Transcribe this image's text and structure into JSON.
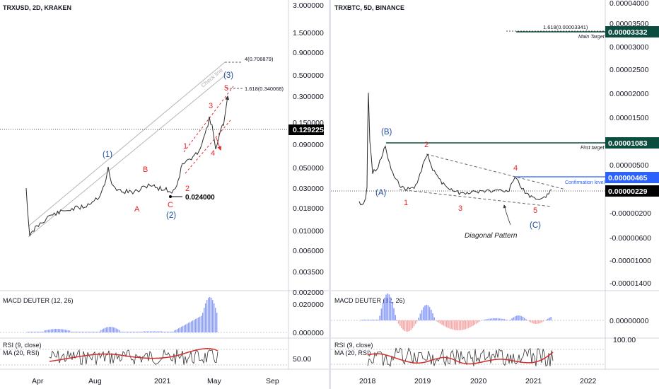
{
  "colors": {
    "grid": "#d1d4dc",
    "price": "#2b2b2b",
    "wave_red": "#e8262c",
    "wave_blue": "#1f4e9c",
    "target_green": "#0b4d3f",
    "confirm_blue": "#2962ff",
    "macd_blue": "#8c9eff",
    "macd_red": "#f7a8a8",
    "rsi_ma": "#d32f2f",
    "current_bg": "#000000"
  },
  "chart_data": [
    {
      "type": "line",
      "title": "TRXUSD, 2D, KRAKEN",
      "y_scale": "log",
      "y_ticks": [
        "3.000000",
        "1.500000",
        "0.900000",
        "0.500000",
        "0.300000",
        "0.150000",
        "0.090000",
        "0.050000",
        "0.030000",
        "0.018000",
        "0.010000",
        "0.006000",
        "0.003500",
        "0.002000"
      ],
      "x_ticks": [
        "Apr",
        "Aug",
        "2021",
        "May",
        "Sep"
      ],
      "current_price": "0.129225",
      "low_label": "0.024000",
      "fib_labels": [
        "4(0.706879)",
        "1.618(0.340068)"
      ],
      "channel_label": "Check line",
      "wave_labels_red": [
        "1",
        "2",
        "3",
        "4",
        "5",
        "A",
        "B",
        "C"
      ],
      "wave_labels_blue": [
        "(1)",
        "(2)",
        "(3)"
      ],
      "series": [
        {
          "x": [
            "2020-03-01",
            "2020-03-15",
            "2020-04-15",
            "2020-05-15",
            "2020-06-15",
            "2020-07-15",
            "2020-08-01",
            "2020-08-20",
            "2020-09-20",
            "2020-10-20",
            "2020-11-20",
            "2020-12-15",
            "2021-01-01",
            "2021-01-20",
            "2021-02-10",
            "2021-03-01",
            "2021-03-20",
            "2021-04-05",
            "2021-04-15",
            "2021-04-25",
            "2021-05-05"
          ],
          "y": [
            0.03,
            0.01,
            0.013,
            0.016,
            0.018,
            0.02,
            0.028,
            0.022,
            0.022,
            0.025,
            0.028,
            0.026,
            0.025,
            0.028,
            0.04,
            0.05,
            0.06,
            0.1,
            0.16,
            0.09,
            0.129
          ]
        }
      ]
    },
    {
      "type": "bar",
      "title": "MACD DEUTER (12, 26)",
      "y_ticks": [
        "0.020000",
        "0.000000"
      ]
    },
    {
      "type": "line",
      "title": "RSI (9, close)",
      "subtitle": "MA (20, RSI)",
      "y_ticks": [
        "50.00"
      ]
    },
    {
      "type": "line",
      "title": "TRXBTC, 5D, BINANCE",
      "y_ticks": [
        "0.00004000",
        "0.00003500",
        "0.00003000",
        "0.00002500",
        "0.00002000",
        "0.00001500",
        "0.00001000",
        "0.00000500",
        "0.00000000",
        "-0.00000200",
        "-0.00000600",
        "-0.00001000",
        "-0.00001400"
      ],
      "x_ticks": [
        "2018",
        "2019",
        "2020",
        "2021",
        "2022"
      ],
      "badges": [
        "0.00003332",
        "0.00001083",
        "0.00000465",
        "0.00000229"
      ],
      "fib_label": "1.618(0.00003341)",
      "main_target_label": "Main Target",
      "first_target_label": "First target",
      "confirmation_label": "Confirmation level",
      "pattern_label": "Diagonal Pattern",
      "wave_labels_red": [
        "1",
        "2",
        "3",
        "4",
        "5"
      ],
      "wave_labels_blue": [
        "(A)",
        "(B)",
        "(C)"
      ],
      "series": [
        {
          "x": [
            "2017-11",
            "2017-12",
            "2018-01",
            "2018-02",
            "2018-05",
            "2018-08",
            "2018-12",
            "2019-02",
            "2019-06",
            "2019-10",
            "2020-03",
            "2020-08",
            "2020-09",
            "2020-12",
            "2021-03",
            "2021-05"
          ],
          "y": [
            5e-07,
            3e-06,
            1.4e-05,
            8e-06,
            9.5e-06,
            4e-06,
            3e-06,
            7.3e-06,
            4e-06,
            2.5e-06,
            1.5e-06,
            2e-06,
            4.3e-06,
            1.6e-06,
            1e-06,
            2.3e-06
          ]
        }
      ]
    },
    {
      "type": "bar",
      "title": "MACD DEUTER (12, 26)",
      "y_ticks": [
        "0.00000000"
      ]
    },
    {
      "type": "line",
      "title": "RSI (9, close)",
      "subtitle": "MA (20, RSI)",
      "y_ticks": [
        "100.00"
      ]
    }
  ]
}
